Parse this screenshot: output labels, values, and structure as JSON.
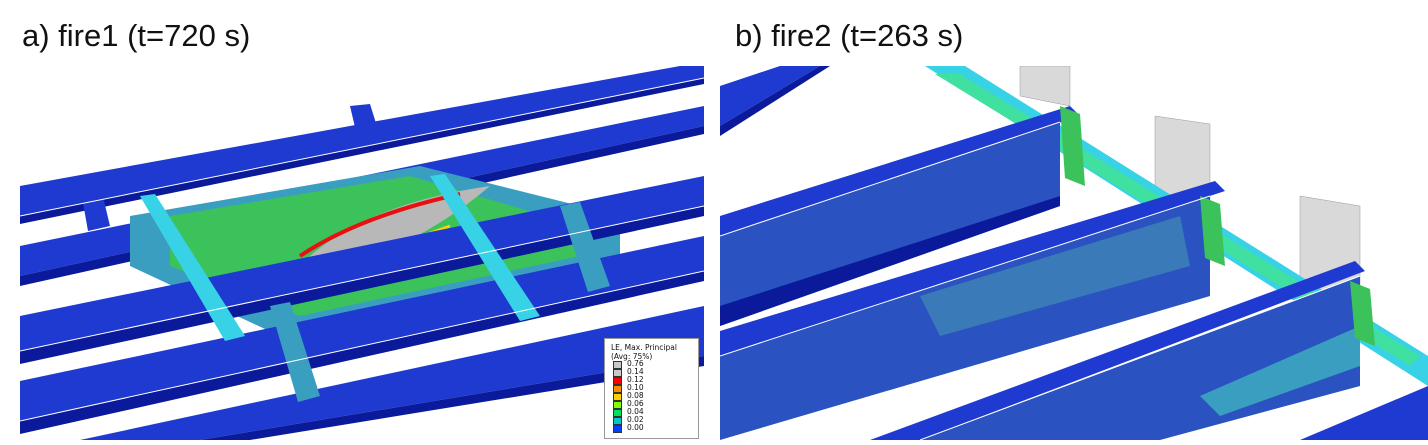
{
  "captions": {
    "a": "a) fire1 (t=720 s)",
    "b": "b) fire2 (t=263 s)"
  },
  "legend": {
    "title_line1": "LE, Max. Principal",
    "title_line2": "(Avg: 75%)",
    "levels": [
      {
        "value": "0.76",
        "color": "#c8c8c8"
      },
      {
        "value": "0.14",
        "color": "#c8c8c8"
      },
      {
        "value": "0.12",
        "color": "#ff0000"
      },
      {
        "value": "0.10",
        "color": "#ff8c00"
      },
      {
        "value": "0.08",
        "color": "#ffd000"
      },
      {
        "value": "0.06",
        "color": "#7fff00"
      },
      {
        "value": "0.04",
        "color": "#00e060"
      },
      {
        "value": "0.02",
        "color": "#00c8c8"
      },
      {
        "value": "0.00",
        "color": "#0040ff"
      }
    ],
    "bottom_color": "#0000c8"
  },
  "colors": {
    "beam_dark": "#0a1a9a",
    "beam_main": "#1f3ad0",
    "beam_light": "#3560e8",
    "slab_green": "#3cc25a",
    "slab_teal": "#3a9ec0",
    "hot_red": "#e81010",
    "hot_grey": "#b8b8b8",
    "cyan": "#37d2e6",
    "wall_grey": "#d9d9d9"
  }
}
